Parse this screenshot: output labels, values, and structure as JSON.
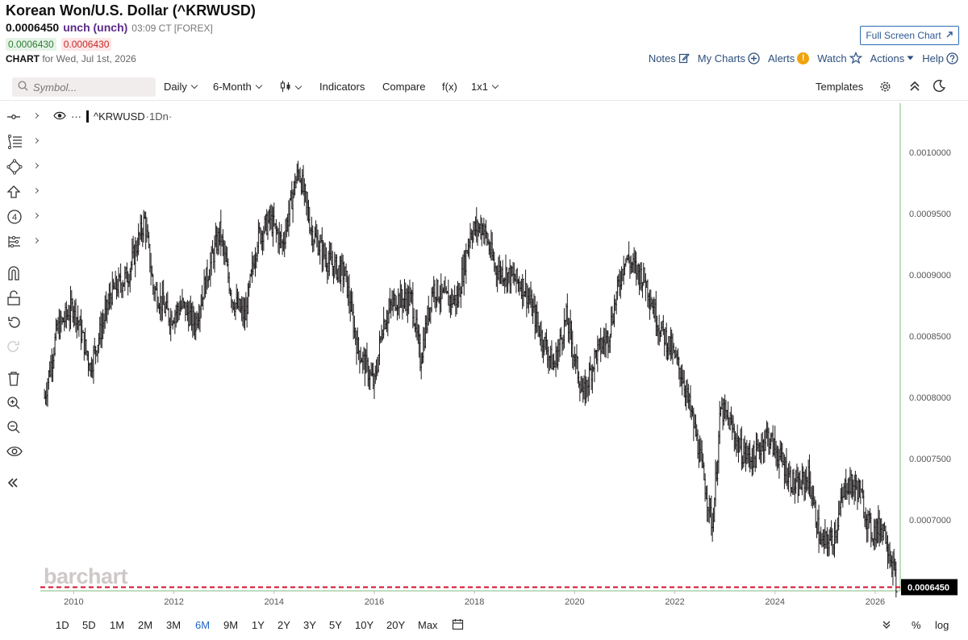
{
  "header": {
    "title": "Korean Won/U.S. Dollar (^KRWUSD)",
    "last_price": "0.0006450",
    "change": "unch (unch)",
    "time_info": "03:09 CT [FOREX]",
    "bid": "0.0006430",
    "ask": "0.0006430",
    "chart_label": "CHART",
    "chart_date": "for Wed, Jul 1st, 2026"
  },
  "buttons": {
    "full_screen": "Full Screen Chart"
  },
  "toplinks": {
    "notes": "Notes",
    "my_charts": "My Charts",
    "alerts": "Alerts",
    "alerts_badge": "!",
    "watch": "Watch",
    "actions": "Actions",
    "help": "Help"
  },
  "toolbar": {
    "symbol_placeholder": "Symbol...",
    "interval": "Daily",
    "period": "6-Month",
    "indicators": "Indicators",
    "compare": "Compare",
    "fx": "f(x)",
    "layout": "1x1",
    "templates": "Templates"
  },
  "legend": {
    "symbol": "^KRWUSD",
    "interval": "·1Dn·",
    "menu": "···"
  },
  "watermark": "barchart",
  "bottom": {
    "ranges": [
      "1D",
      "5D",
      "1M",
      "2M",
      "3M",
      "6M",
      "9M",
      "1Y",
      "2Y",
      "3Y",
      "5Y",
      "10Y",
      "20Y",
      "Max"
    ],
    "active_range": "6M",
    "percent": "%",
    "log": "log"
  },
  "colors": {
    "accent": "#2166c4",
    "last_line": "#d0102c",
    "axis_line": "#7fb87f",
    "bar": "#1b1818"
  },
  "chart_data": {
    "type": "bar",
    "symbol": "^KRWUSD",
    "interval": "1D",
    "x_axis": "date",
    "x_ticks": [
      "2010",
      "2012",
      "2014",
      "2016",
      "2018",
      "2020",
      "2022",
      "2024",
      "2026"
    ],
    "y_ticks": [
      "0.0010000",
      "0.0009500",
      "0.0009000",
      "0.0008500",
      "0.0008000",
      "0.0007500",
      "0.0007000"
    ],
    "ylim": [
      0.000642,
      0.00104
    ],
    "xlim": [
      "2009-05",
      "2026-07"
    ],
    "last_value": 0.000645,
    "last_value_label": "0.0006450",
    "series": [
      {
        "x": [
          "2009-06",
          "2009-09",
          "2010-01",
          "2010-05",
          "2010-10",
          "2011-02",
          "2011-06",
          "2011-08",
          "2011-12",
          "2012-03",
          "2012-06",
          "2012-09",
          "2012-12",
          "2013-03",
          "2013-06",
          "2013-09",
          "2013-12",
          "2014-03",
          "2014-06",
          "2014-07",
          "2014-10",
          "2015-02",
          "2015-06",
          "2015-09",
          "2016-01",
          "2016-03",
          "2016-06",
          "2016-10",
          "2016-12",
          "2017-03",
          "2017-06",
          "2017-09",
          "2017-12",
          "2018-03",
          "2018-06",
          "2018-09",
          "2019-01",
          "2019-05",
          "2019-08",
          "2019-11",
          "2020-03",
          "2020-06",
          "2020-09",
          "2021-01",
          "2021-06",
          "2021-09",
          "2021-12",
          "2022-03",
          "2022-06",
          "2022-10",
          "2022-12",
          "2023-02",
          "2023-05",
          "2023-08",
          "2023-11",
          "2024-03",
          "2024-06",
          "2024-09",
          "2024-12",
          "2025-03",
          "2025-06",
          "2025-09",
          "2025-12",
          "2026-03",
          "2026-06"
        ],
        "values": [
          0.0008,
          0.000855,
          0.000875,
          0.000825,
          0.000885,
          0.0009,
          0.000945,
          0.00089,
          0.000865,
          0.000875,
          0.00086,
          0.0009,
          0.000935,
          0.00088,
          0.000865,
          0.00093,
          0.000945,
          0.000925,
          0.000975,
          0.000985,
          0.000935,
          0.00091,
          0.0009,
          0.00084,
          0.00081,
          0.00086,
          0.00088,
          0.00088,
          0.00083,
          0.00089,
          0.00088,
          0.00088,
          0.000935,
          0.00094,
          0.000905,
          0.0009,
          0.00089,
          0.00085,
          0.000825,
          0.000865,
          0.0008,
          0.000835,
          0.00085,
          0.000915,
          0.000895,
          0.00086,
          0.00084,
          0.000815,
          0.00077,
          0.000695,
          0.00079,
          0.00078,
          0.000755,
          0.00075,
          0.00077,
          0.000745,
          0.000725,
          0.000735,
          0.00068,
          0.000685,
          0.00073,
          0.000725,
          0.00069,
          0.000695,
          0.00065
        ]
      }
    ]
  }
}
